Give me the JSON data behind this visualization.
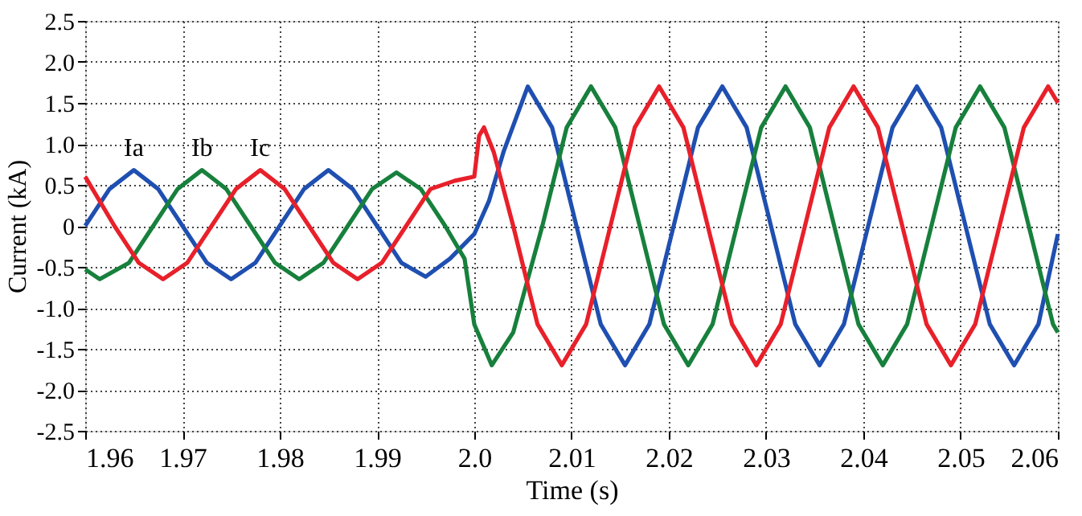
{
  "chart_data": {
    "type": "line",
    "xlabel": "Time (s)",
    "ylabel": "Current (kA)",
    "xlim": [
      1.96,
      2.06
    ],
    "ylim": [
      -2.5,
      2.5
    ],
    "xticks": [
      1.96,
      1.97,
      1.98,
      1.99,
      {
        "value": 2.0,
        "label": "2.0"
      },
      2.01,
      2.02,
      2.03,
      2.04,
      2.05,
      2.06
    ],
    "yticks": [
      2.5,
      {
        "value": 2.0,
        "label": "2.0"
      },
      1.5,
      {
        "value": 1.0,
        "label": "1.0"
      },
      0.5,
      0,
      -0.5,
      {
        "value": -1.0,
        "label": "-1.0"
      },
      -1.5,
      {
        "value": -2.0,
        "label": "-2.0"
      },
      -2.5
    ],
    "grid": true,
    "line_style": "solid",
    "marker": "none",
    "annotations": [
      {
        "text": "Ia",
        "x": 1.965,
        "y": 0.68
      },
      {
        "text": "Ib",
        "x": 1.972,
        "y": 0.68
      },
      {
        "text": "Ic",
        "x": 1.978,
        "y": 0.68
      }
    ],
    "series": [
      {
        "color": "#1f4fb0",
        "x": [
          1.96,
          1.9625,
          1.965,
          1.9675,
          1.97,
          1.9725,
          1.975,
          1.9775,
          1.98,
          1.9825,
          1.985,
          1.9875,
          1.99,
          1.9925,
          1.995,
          1.9975,
          2.0,
          2.0015,
          2.003,
          2.0055,
          2.008,
          2.0105,
          2.013,
          2.0155,
          2.018,
          2.0205,
          2.023,
          2.0255,
          2.028,
          2.0305,
          2.033,
          2.0355,
          2.038,
          2.0405,
          2.043,
          2.0455,
          2.048,
          2.0505,
          2.053,
          2.0555,
          2.058,
          2.06
        ],
        "values": [
          0.0,
          0.45,
          0.68,
          0.45,
          0.0,
          -0.45,
          -0.65,
          -0.45,
          0.0,
          0.45,
          0.68,
          0.45,
          0.0,
          -0.45,
          -0.62,
          -0.4,
          -0.1,
          0.3,
          0.9,
          1.7,
          1.2,
          0.0,
          -1.2,
          -1.7,
          -1.2,
          0.0,
          1.2,
          1.7,
          1.2,
          0.0,
          -1.2,
          -1.7,
          -1.2,
          0.0,
          1.2,
          1.7,
          1.2,
          0.0,
          -1.2,
          -1.7,
          -1.2,
          -0.1
        ]
      },
      {
        "color": "#17803c",
        "x": [
          1.96,
          1.9615,
          1.9645,
          1.967,
          1.9695,
          1.972,
          1.9745,
          1.977,
          1.9795,
          1.982,
          1.9845,
          1.987,
          1.9895,
          1.992,
          1.9945,
          1.997,
          1.999,
          2.0,
          2.0018,
          2.004,
          2.007,
          2.0095,
          2.012,
          2.0145,
          2.017,
          2.0195,
          2.022,
          2.0245,
          2.027,
          2.0295,
          2.032,
          2.0345,
          2.037,
          2.0395,
          2.042,
          2.0445,
          2.047,
          2.0495,
          2.052,
          2.0545,
          2.057,
          2.0595,
          2.06
        ],
        "values": [
          -0.53,
          -0.65,
          -0.45,
          0.0,
          0.45,
          0.68,
          0.45,
          0.0,
          -0.45,
          -0.65,
          -0.45,
          0.0,
          0.45,
          0.65,
          0.45,
          0.0,
          -0.4,
          -1.2,
          -1.7,
          -1.3,
          0.0,
          1.2,
          1.7,
          1.2,
          0.0,
          -1.2,
          -1.7,
          -1.2,
          0.0,
          1.2,
          1.7,
          1.2,
          0.0,
          -1.2,
          -1.7,
          -1.2,
          0.0,
          1.2,
          1.7,
          1.2,
          0.0,
          -1.2,
          -1.3
        ]
      },
      {
        "color": "#e8202a",
        "x": [
          1.96,
          1.963,
          1.9655,
          1.968,
          1.9705,
          1.973,
          1.9755,
          1.978,
          1.9805,
          1.983,
          1.9855,
          1.988,
          1.9905,
          1.993,
          1.9955,
          1.998,
          2.0,
          2.0005,
          2.001,
          2.002,
          2.004,
          2.0065,
          2.009,
          2.0115,
          2.014,
          2.0165,
          2.019,
          2.0215,
          2.024,
          2.0265,
          2.029,
          2.0315,
          2.034,
          2.0365,
          2.039,
          2.0415,
          2.044,
          2.0465,
          2.049,
          2.0515,
          2.054,
          2.0565,
          2.059,
          2.06
        ],
        "values": [
          0.6,
          0.0,
          -0.45,
          -0.65,
          -0.45,
          0.0,
          0.45,
          0.68,
          0.45,
          0.0,
          -0.45,
          -0.65,
          -0.45,
          0.0,
          0.45,
          0.55,
          0.6,
          1.1,
          1.2,
          0.9,
          0.0,
          -1.2,
          -1.7,
          -1.2,
          0.0,
          1.2,
          1.7,
          1.2,
          0.0,
          -1.2,
          -1.7,
          -1.2,
          0.0,
          1.2,
          1.7,
          1.2,
          0.0,
          -1.2,
          -1.7,
          -1.2,
          0.0,
          1.2,
          1.7,
          1.5
        ]
      }
    ]
  }
}
